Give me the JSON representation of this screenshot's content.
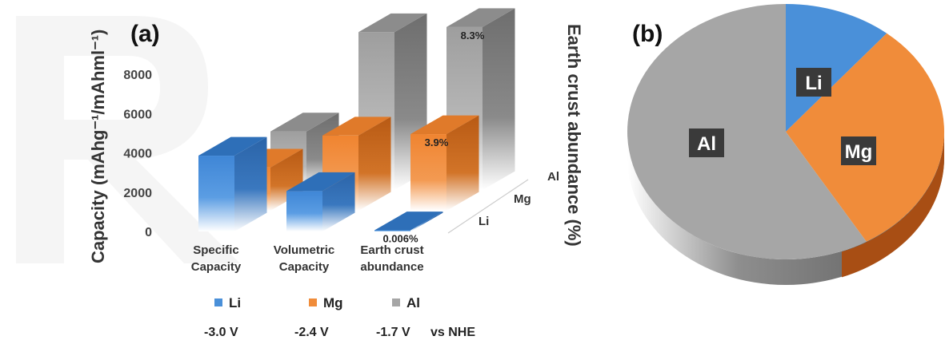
{
  "panel_a_label": "(a)",
  "panel_b_label": "(b)",
  "chart_data": [
    {
      "type": "bar",
      "style": "3d-clustered",
      "ylabel": "Capacity (mAhg⁻¹/mAhml⁻¹)",
      "yticks": [
        0,
        2000,
        4000,
        6000,
        8000
      ],
      "categories": [
        "Specific\nCapacity",
        "Volumetric\nCapacity",
        "Earth crust\nabundance"
      ],
      "depth_labels": [
        "Li",
        "Mg",
        "Al"
      ],
      "series": [
        {
          "name": "Li",
          "color": "#4a90d9",
          "values": [
            3860,
            2060,
            2
          ],
          "data_labels": [
            "",
            "",
            "0.006%"
          ]
        },
        {
          "name": "Mg",
          "color": "#f08c3a",
          "values": [
            2200,
            3830,
            3900
          ],
          "data_labels": [
            "",
            "",
            "3.9%"
          ]
        },
        {
          "name": "Al",
          "color": "#a6a6a6",
          "values": [
            2980,
            8040,
            8300
          ],
          "data_labels": [
            "",
            "",
            "8.3%"
          ]
        }
      ],
      "legend": {
        "placement": "bottom",
        "voltages": [
          "-3.0 V",
          "-2.4 V",
          "-1.7 V"
        ],
        "reference": "vs NHE"
      }
    },
    {
      "type": "pie",
      "style": "3d",
      "ylabel": "Earth crust abundance (%)",
      "labels": [
        "Li",
        "Mg",
        "Al"
      ],
      "values": [
        0.006,
        3.9,
        8.3
      ],
      "colors": [
        "#4a90d9",
        "#f08c3a",
        "#a6a6a6"
      ]
    }
  ]
}
